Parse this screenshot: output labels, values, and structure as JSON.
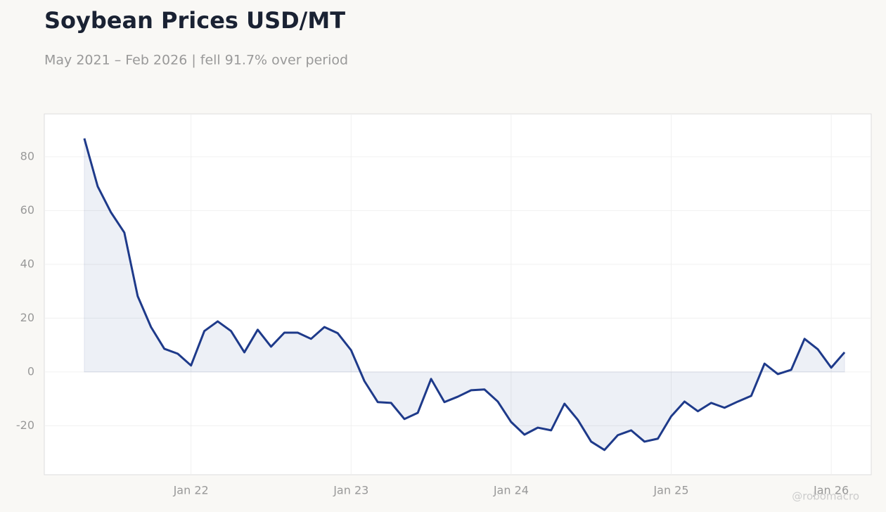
{
  "chart_data": {
    "type": "line",
    "title": "Soybean Prices USD/MT",
    "subtitle": "May 2021 – Feb 2026 | fell 91.7% over period",
    "watermark": "@robomacro",
    "x": [
      "2021-05",
      "2021-06",
      "2021-07",
      "2021-08",
      "2021-09",
      "2021-10",
      "2021-11",
      "2021-12",
      "2022-01",
      "2022-02",
      "2022-03",
      "2022-04",
      "2022-05",
      "2022-06",
      "2022-07",
      "2022-08",
      "2022-09",
      "2022-10",
      "2022-11",
      "2022-12",
      "2023-01",
      "2023-02",
      "2023-03",
      "2023-04",
      "2023-05",
      "2023-06",
      "2023-07",
      "2023-08",
      "2023-09",
      "2023-10",
      "2023-11",
      "2023-12",
      "2024-01",
      "2024-02",
      "2024-03",
      "2024-04",
      "2024-05",
      "2024-06",
      "2024-07",
      "2024-08",
      "2024-09",
      "2024-10",
      "2024-11",
      "2024-12",
      "2025-01",
      "2025-02",
      "2025-03",
      "2025-04",
      "2025-05",
      "2025-06",
      "2025-07",
      "2025-08",
      "2025-09",
      "2025-10",
      "2025-11",
      "2025-12",
      "2026-01",
      "2026-02"
    ],
    "series": [
      {
        "color": "#1e3a8a",
        "area_color": "rgba(30,58,138,0.08)",
        "values": [
          86.8,
          69,
          59.3,
          51.8,
          28.2,
          16.7,
          8.6,
          6.8,
          2.4,
          15.2,
          18.8,
          15.2,
          7.3,
          15.7,
          9.4,
          14.6,
          14.6,
          12.3,
          16.7,
          14.4,
          8.1,
          -3.4,
          -11.2,
          -11.5,
          -17.5,
          -15.2,
          -2.6,
          -11.2,
          -9.2,
          -6.8,
          -6.5,
          -11,
          -18.6,
          -23.3,
          -20.7,
          -21.7,
          -11.8,
          -17.8,
          -25.9,
          -29,
          -23.5,
          -21.7,
          -25.9,
          -24.8,
          -16.5,
          -11,
          -14.6,
          -11.5,
          -13.3,
          -11,
          -8.9,
          3.1,
          -0.8,
          0.8,
          12.3,
          8.4,
          1.6,
          7.3
        ]
      }
    ],
    "xlim": [
      "2021-02",
      "2026-04"
    ],
    "xticks": [
      {
        "value": "2022-01",
        "label": "Jan 22"
      },
      {
        "value": "2023-01",
        "label": "Jan 23"
      },
      {
        "value": "2024-01",
        "label": "Jan 24"
      },
      {
        "value": "2025-01",
        "label": "Jan 25"
      },
      {
        "value": "2026-01",
        "label": "Jan 26"
      }
    ],
    "ylim": [
      -38.2,
      95.9
    ],
    "yticks": [
      -20,
      0,
      20,
      40,
      60,
      80
    ],
    "grid": true
  }
}
